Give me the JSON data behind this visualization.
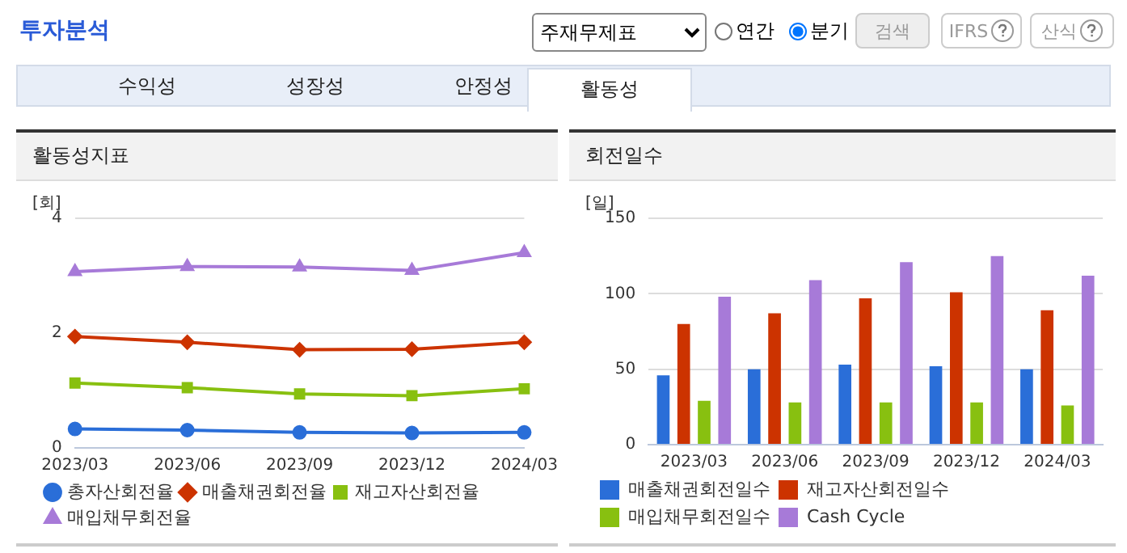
{
  "chart_data": [
    {
      "type": "other",
      "title": "투자분석",
      "annotations": [
        "주재무제표",
        "연간",
        "분기",
        "검색",
        "IFRS",
        "산식",
        "수익성",
        "성장성",
        "안정성",
        "활동성"
      ]
    },
    {
      "type": "line",
      "title": "활동성지표",
      "ylabel": "[회]",
      "categories": [
        "2023/03",
        "2023/06",
        "2023/09",
        "2023/12",
        "2024/03"
      ],
      "ylim": [
        0,
        4
      ],
      "yticks": [
        0,
        2,
        4
      ],
      "grid": "y",
      "legend": "bottom",
      "series": [
        {
          "name": "총자산회전율",
          "color": "#2a6ed8",
          "marker": "circle",
          "values": [
            0.33,
            0.31,
            0.27,
            0.26,
            0.27
          ]
        },
        {
          "name": "매출채권회전율",
          "color": "#cc3300",
          "marker": "diamond",
          "values": [
            1.94,
            1.84,
            1.71,
            1.72,
            1.84
          ]
        },
        {
          "name": "재고자산회전율",
          "color": "#88c010",
          "marker": "square",
          "values": [
            1.13,
            1.05,
            0.94,
            0.91,
            1.03
          ]
        },
        {
          "name": "매입채무회전율",
          "color": "#a77ad8",
          "marker": "triangle",
          "values": [
            3.07,
            3.16,
            3.15,
            3.09,
            3.4
          ]
        }
      ]
    },
    {
      "type": "bar",
      "title": "회전일수",
      "ylabel": "[일]",
      "categories": [
        "2023/03",
        "2023/06",
        "2023/09",
        "2023/12",
        "2024/03"
      ],
      "ylim": [
        0,
        150
      ],
      "yticks": [
        0,
        50,
        100,
        150
      ],
      "grid": "y",
      "legend": "bottom",
      "series": [
        {
          "name": "매출채권회전일수",
          "color": "#2a6ed8",
          "values": [
            46,
            50,
            53,
            52,
            50
          ]
        },
        {
          "name": "재고자산회전일수",
          "color": "#cc3300",
          "values": [
            80,
            87,
            97,
            101,
            89
          ]
        },
        {
          "name": "매입채무회전일수",
          "color": "#88c010",
          "values": [
            29,
            28,
            28,
            28,
            26
          ]
        },
        {
          "name": "Cash Cycle",
          "color": "#a77ad8",
          "values": [
            98,
            109,
            121,
            125,
            112
          ]
        }
      ]
    }
  ]
}
